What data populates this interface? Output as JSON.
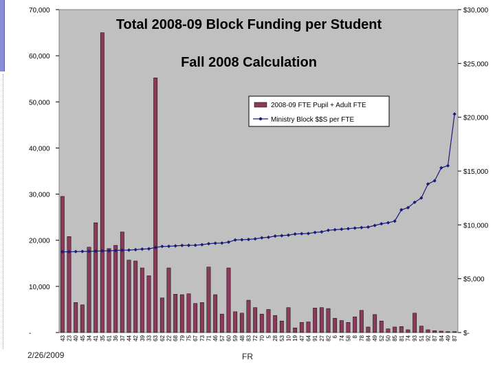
{
  "footer": {
    "date": "2/26/2009",
    "center_text": "FR"
  },
  "chart_data": {
    "type": "bar",
    "title": "Total 2008-09 Block Funding per Student",
    "subtitle": "Fall 2008 Calculation",
    "plot_background": "#c0c0c0",
    "bar_color": "#8b3a5a",
    "line_color": "#1a1a7a",
    "legend_position": "top-right",
    "categories": [
      "43",
      "23",
      "40",
      "45",
      "34",
      "41",
      "35",
      "61",
      "36",
      "37",
      "44",
      "42",
      "39",
      "33",
      "63",
      "62",
      "22",
      "68",
      "79",
      "75",
      "67",
      "73",
      "71",
      "46",
      "57",
      "60",
      "59",
      "48",
      "83",
      "72",
      "70",
      "5",
      "28",
      "53",
      "10",
      "19",
      "47",
      "64",
      "91",
      "27",
      "82",
      "6",
      "74",
      "58",
      "8",
      "78",
      "84",
      "49",
      "52",
      "50",
      "85",
      "81",
      "74",
      "93",
      "51",
      "92",
      "87",
      "84",
      "49",
      "87"
    ],
    "y_left": {
      "min": 0,
      "max": 70000,
      "ticks": [
        "-",
        "10,000",
        "20,000",
        "30,000",
        "40,000",
        "50,000",
        "60,000",
        "70,000"
      ]
    },
    "y_right": {
      "min": 0,
      "max": 30000,
      "ticks": [
        "$-",
        "$5,000",
        "$10,000",
        "$15,000",
        "$20,000",
        "$25,000",
        "$30,000"
      ]
    },
    "series": [
      {
        "name": "2008-09 FTE Pupil + Adult FTE",
        "type": "bar",
        "axis": "left",
        "values": [
          29500,
          20800,
          6500,
          6000,
          18500,
          23800,
          65000,
          18200,
          18900,
          21800,
          15700,
          15500,
          14000,
          12300,
          55200,
          7500,
          14000,
          8300,
          8200,
          8400,
          6300,
          6500,
          14200,
          8200,
          4000,
          14000,
          4500,
          4200,
          7000,
          5400,
          4000,
          5000,
          3700,
          2500,
          5400,
          1000,
          2200,
          2300,
          5300,
          5400,
          5200,
          3100,
          2600,
          2200,
          3400,
          4800,
          1200,
          3900,
          2500,
          800,
          1200,
          1300,
          600,
          4200,
          1400,
          600,
          400,
          300,
          200,
          200
        ]
      },
      {
        "name": "Ministry Block $$S per FTE",
        "type": "line",
        "axis": "right",
        "values": [
          7500,
          7500,
          7520,
          7530,
          7540,
          7560,
          7580,
          7600,
          7620,
          7650,
          7660,
          7700,
          7750,
          7780,
          7900,
          8000,
          8010,
          8050,
          8090,
          8100,
          8110,
          8160,
          8250,
          8300,
          8310,
          8400,
          8600,
          8620,
          8650,
          8700,
          8800,
          8850,
          8960,
          9000,
          9050,
          9150,
          9180,
          9200,
          9300,
          9350,
          9500,
          9550,
          9600,
          9650,
          9700,
          9750,
          9800,
          9950,
          10100,
          10200,
          10350,
          11400,
          11600,
          12100,
          12500,
          13800,
          14100,
          15300,
          15500,
          20300
        ]
      }
    ]
  }
}
